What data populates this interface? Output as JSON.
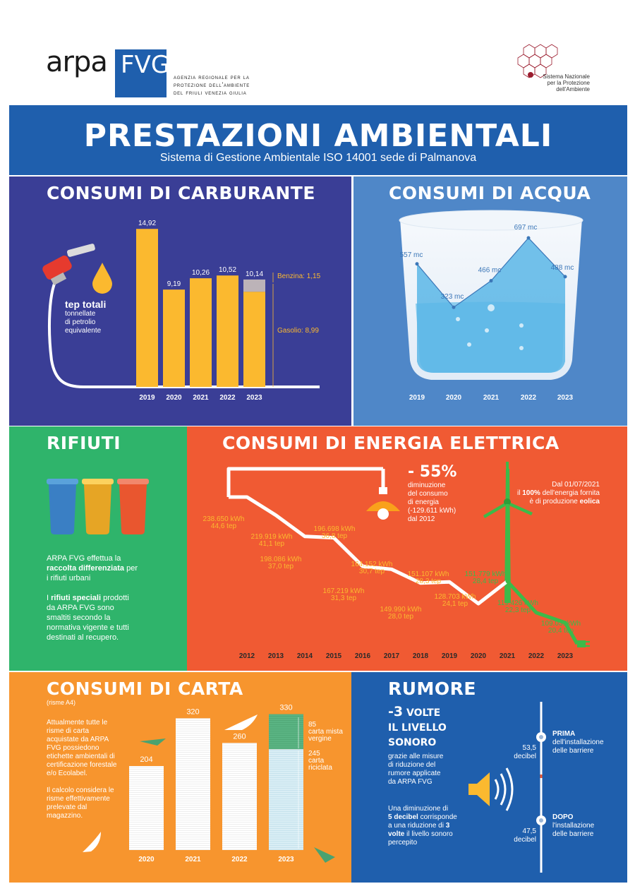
{
  "header": {
    "logo_arpa": "ARPA",
    "logo_fvg": "FVG",
    "agency_line1": "agenzia regionale per la",
    "agency_line2": "protezione dell'ambiente",
    "agency_line3": "del friuli venezia giulia",
    "snpa_line1": "Sistema Nazionale",
    "snpa_line2": "per la Protezione",
    "snpa_line3": "dell'Ambiente"
  },
  "banner": {
    "title": "PRESTAZIONI AMBIENTALI",
    "subtitle": "Sistema di Gestione Ambientale ISO 14001 sede di Palmanova"
  },
  "colors": {
    "banner": "#1f5fad",
    "carburante_bg": "#3a3e96",
    "acqua_bg": "#4f87c8",
    "rifiuti_bg": "#2fb46b",
    "energia_bg": "#f05a33",
    "carta_bg": "#f7952e",
    "rumore_bg": "#1f5fad",
    "yellow": "#fbb92f",
    "green": "#3dba49"
  },
  "carburante": {
    "title": "CONSUMI DI CARBURANTE",
    "tep_label": "tep totali",
    "tep_desc1": "tonnellate",
    "tep_desc2": "di petrolio",
    "tep_desc3": "equivalente",
    "benzina_label": "Benzina: 1,15",
    "gasolio_label": "Gasolio: 8,99",
    "chart_data": {
      "type": "bar",
      "categories": [
        "2019",
        "2020",
        "2021",
        "2022",
        "2023"
      ],
      "values": [
        14.92,
        9.19,
        10.26,
        10.52,
        10.14
      ],
      "value_labels": [
        "14,92",
        "9,19",
        "10,26",
        "10,52",
        "10,14"
      ],
      "stack_2023": {
        "benzina": 1.15,
        "gasolio": 8.99
      },
      "ylim": [
        0,
        16
      ]
    }
  },
  "acqua": {
    "title": "CONSUMI DI ACQUA",
    "chart_data": {
      "type": "area",
      "categories": [
        "2019",
        "2020",
        "2021",
        "2022",
        "2023"
      ],
      "values": [
        557,
        323,
        466,
        697,
        488
      ],
      "value_labels": [
        "557 mc",
        "323 mc",
        "466 mc",
        "697 mc",
        "488 mc"
      ],
      "ylim": [
        0,
        800
      ]
    }
  },
  "rifiuti": {
    "title": "RIFIUTI",
    "p1_a": "ARPA FVG effettua la",
    "p1_b": "raccolta differenziata",
    "p1_c": " per",
    "p1_d": "i rifiuti urbani",
    "p2_a": "I ",
    "p2_b": "rifiuti speciali",
    "p2_c": " prodotti",
    "p2_d": "da ARPA FVG sono",
    "p2_e": "smaltiti secondo la",
    "p2_f": "normativa vigente e tutti",
    "p2_g": "destinati al recupero."
  },
  "energia": {
    "title": "CONSUMI DI ENERGIA ELETTRICA",
    "reduction_big": "- 55%",
    "reduction_l1": "diminuzione",
    "reduction_l2": "del consumo",
    "reduction_l3": "di energia",
    "reduction_l4": "(-129.611 kWh)",
    "reduction_l5": "dal 2012",
    "wind_l1": "Dal 01/07/2021",
    "wind_l2a": "il ",
    "wind_l2b": "100%",
    "wind_l2c": " dell'energia fornita",
    "wind_l3a": "è di produzione ",
    "wind_l3b": "eolica",
    "chart_data": {
      "type": "line",
      "categories": [
        "2012",
        "2013",
        "2014",
        "2015",
        "2016",
        "2017",
        "2018",
        "2019",
        "2020",
        "2021",
        "2022",
        "2023"
      ],
      "series": [
        {
          "values_kwh": [
            238650,
            219919,
            198086,
            196698,
            167219,
            164152,
            149990,
            151107,
            128703,
            151779,
            119426,
            109039
          ]
        },
        {
          "values_tep": [
            44.6,
            41.1,
            37.0,
            36.8,
            31.3,
            30.7,
            28.0,
            28.3,
            24.1,
            28.4,
            22.3,
            20.4
          ]
        }
      ],
      "labels_kwh": [
        "238.650 kWh",
        "219.919 kWh",
        "198.086 kWh",
        "196.698 kWh",
        "167.219 kWh",
        "164.152 kWh",
        "149.990 kWh",
        "151.107 kWh",
        "128.703 kWh",
        "151.779 kWh",
        "119.426 kWh",
        "109.039kWh"
      ],
      "labels_tep": [
        "44,6 tep",
        "41,1 tep",
        "37,0 tep",
        "36,8 tep",
        "31,3 tep",
        "30,7 tep",
        "28,0 tep",
        "28,3 tep",
        "24,1 tep",
        "28,4 tep",
        "22,3 tep",
        "20,4 tep"
      ]
    }
  },
  "carta": {
    "title": "CONSUMI DI CARTA",
    "subtitle": "(risme A4)",
    "p1_l1": "Attualmente tutte le",
    "p1_l2": "risme di carta",
    "p1_l3": "acquistate da ARPA",
    "p1_l4": "FVG possiedono",
    "p1_l5": "etichette ambientali di",
    "p1_l6": "certificazione forestale",
    "p1_l7": "e/o Ecolabel.",
    "p2_l1": "Il calcolo considera le",
    "p2_l2": "risme effettivamente",
    "p2_l3": "prelevate dal",
    "p2_l4": "magazzino.",
    "mista_l1": "85",
    "mista_l2": "carta mista",
    "mista_l3": "vergine",
    "ricic_l1": "245",
    "ricic_l2": "carta",
    "ricic_l3": "riciclata",
    "chart_data": {
      "type": "bar",
      "categories": [
        "2020",
        "2021",
        "2022",
        "2023"
      ],
      "values": [
        204,
        320,
        260,
        330
      ],
      "value_labels": [
        "204",
        "320",
        "260",
        "330"
      ],
      "stack_2023": {
        "carta_mista_vergine": 85,
        "carta_riciclata": 245
      },
      "ylim": [
        0,
        360
      ]
    }
  },
  "rumore": {
    "title": "RUMORE",
    "big_a": "-3",
    "big_b": " VOLTE",
    "big_l2": "IL LIVELLO",
    "big_l3": "SONORO",
    "d1": "grazie alle misure",
    "d2": "di riduzione del",
    "d3": "rumore applicate",
    "d4": "da ARPA FVG",
    "e1": "Una diminuzione di",
    "e2a": "5 decibel",
    "e2b": " corrisponde",
    "e3a": "a una riduzione di ",
    "e3b": "3",
    "e4a": "volte",
    "e4b": " il livello sonoro",
    "e5": "percepito",
    "before_value": "53,5",
    "before_unit": "decibel",
    "before_label": "PRIMA",
    "before_l2": "dell'installazione",
    "before_l3": "delle barriere",
    "after_value": "47,5",
    "after_unit": "decibel",
    "after_label": "DOPO",
    "after_l2": "l'installazione",
    "after_l3": "delle barriere"
  }
}
